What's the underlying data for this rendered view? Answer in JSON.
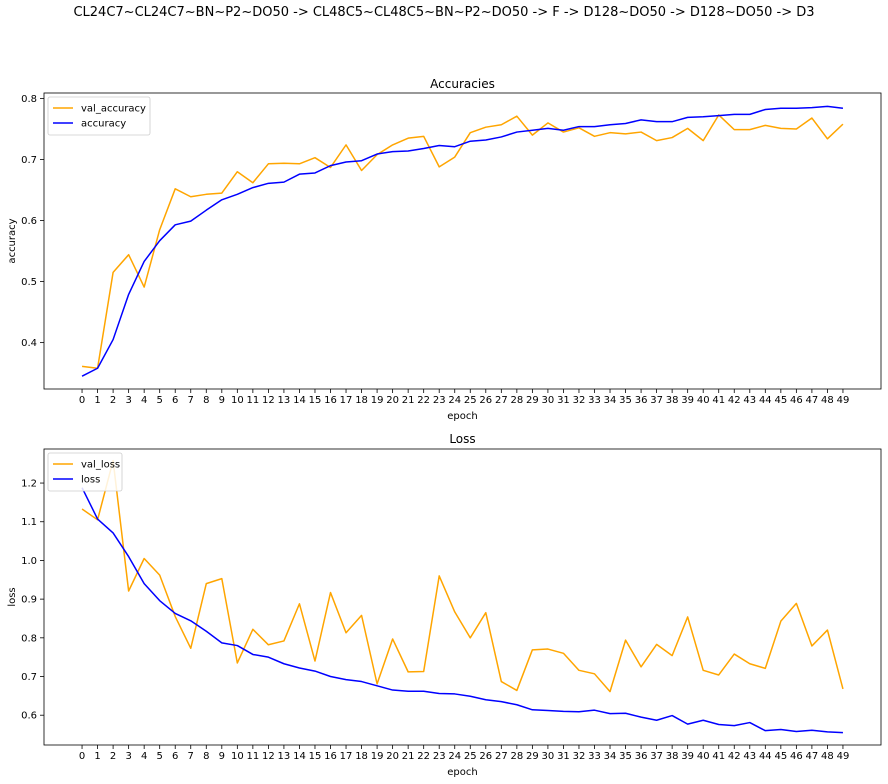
{
  "suptitle": "CL24C7~CL24C7~BN~P2~DO50 -> CL48C5~CL48C5~BN~P2~DO50 -> F -> D128~DO50 -> D128~DO50 -> D3",
  "colors": {
    "orange": "#ffa500",
    "blue": "#0000ff"
  },
  "chart_data": [
    {
      "type": "line",
      "title": "Accuracies",
      "xlabel": "epoch",
      "ylabel": "accuracy",
      "x": [
        0,
        1,
        2,
        3,
        4,
        5,
        6,
        7,
        8,
        9,
        10,
        11,
        12,
        13,
        14,
        15,
        16,
        17,
        18,
        19,
        20,
        21,
        22,
        23,
        24,
        25,
        26,
        27,
        28,
        29,
        30,
        31,
        32,
        33,
        34,
        35,
        36,
        37,
        38,
        39,
        40,
        41,
        42,
        43,
        44,
        45,
        46,
        47,
        48,
        49
      ],
      "xlim": [
        -2.45,
        51.45
      ],
      "ylim": [
        0.324,
        0.809
      ],
      "yticks": [
        0.4,
        0.5,
        0.6,
        0.7,
        0.8
      ],
      "yticklabels": [
        "0.4",
        "0.5",
        "0.6",
        "0.7",
        "0.8"
      ],
      "legend_loc": "upper left",
      "grid": false,
      "series": [
        {
          "name": "val_accuracy",
          "color": "#ffa500",
          "values": [
            0.361,
            0.358,
            0.515,
            0.544,
            0.491,
            0.585,
            0.652,
            0.639,
            0.643,
            0.645,
            0.68,
            0.662,
            0.693,
            0.694,
            0.693,
            0.703,
            0.687,
            0.724,
            0.682,
            0.708,
            0.724,
            0.735,
            0.738,
            0.688,
            0.704,
            0.744,
            0.753,
            0.757,
            0.771,
            0.74,
            0.76,
            0.745,
            0.752,
            0.738,
            0.744,
            0.742,
            0.745,
            0.731,
            0.736,
            0.751,
            0.731,
            0.773,
            0.749,
            0.749,
            0.756,
            0.751,
            0.75,
            0.768,
            0.734,
            0.758
          ]
        },
        {
          "name": "accuracy",
          "color": "#0000ff",
          "values": [
            0.345,
            0.358,
            0.405,
            0.479,
            0.533,
            0.567,
            0.593,
            0.599,
            0.617,
            0.634,
            0.643,
            0.654,
            0.661,
            0.663,
            0.676,
            0.678,
            0.69,
            0.696,
            0.698,
            0.709,
            0.713,
            0.714,
            0.718,
            0.723,
            0.721,
            0.73,
            0.732,
            0.737,
            0.745,
            0.748,
            0.751,
            0.748,
            0.754,
            0.754,
            0.757,
            0.759,
            0.765,
            0.762,
            0.762,
            0.769,
            0.77,
            0.772,
            0.774,
            0.774,
            0.782,
            0.784,
            0.784,
            0.785,
            0.787,
            0.784
          ]
        }
      ]
    },
    {
      "type": "line",
      "title": "Loss",
      "xlabel": "epoch",
      "ylabel": "loss",
      "x": [
        0,
        1,
        2,
        3,
        4,
        5,
        6,
        7,
        8,
        9,
        10,
        11,
        12,
        13,
        14,
        15,
        16,
        17,
        18,
        19,
        20,
        21,
        22,
        23,
        24,
        25,
        26,
        27,
        28,
        29,
        30,
        31,
        32,
        33,
        34,
        35,
        36,
        37,
        38,
        39,
        40,
        41,
        42,
        43,
        44,
        45,
        46,
        47,
        48,
        49
      ],
      "xlim": [
        -2.45,
        51.45
      ],
      "ylim": [
        0.523,
        1.288
      ],
      "yticks": [
        0.6,
        0.7,
        0.8,
        0.9,
        1.0,
        1.1,
        1.2
      ],
      "yticklabels": [
        "0.6",
        "0.7",
        "0.8",
        "0.9",
        "1.0",
        "1.1",
        "1.2"
      ],
      "legend_loc": "upper left",
      "grid": false,
      "series": [
        {
          "name": "val_loss",
          "color": "#ffa500",
          "values": [
            1.133,
            1.105,
            1.258,
            0.921,
            1.005,
            0.962,
            0.855,
            0.773,
            0.94,
            0.953,
            0.735,
            0.822,
            0.782,
            0.792,
            0.888,
            0.74,
            0.917,
            0.813,
            0.858,
            0.681,
            0.797,
            0.712,
            0.713,
            0.96,
            0.867,
            0.8,
            0.865,
            0.687,
            0.664,
            0.769,
            0.771,
            0.76,
            0.716,
            0.707,
            0.661,
            0.794,
            0.725,
            0.783,
            0.754,
            0.854,
            0.716,
            0.704,
            0.758,
            0.733,
            0.721,
            0.843,
            0.889,
            0.779,
            0.82,
            0.668
          ]
        },
        {
          "name": "loss",
          "color": "#0000ff",
          "values": [
            1.188,
            1.107,
            1.071,
            1.01,
            0.94,
            0.896,
            0.863,
            0.844,
            0.817,
            0.787,
            0.78,
            0.757,
            0.75,
            0.733,
            0.722,
            0.714,
            0.7,
            0.692,
            0.687,
            0.676,
            0.665,
            0.662,
            0.662,
            0.656,
            0.655,
            0.649,
            0.64,
            0.635,
            0.627,
            0.614,
            0.612,
            0.61,
            0.609,
            0.613,
            0.604,
            0.605,
            0.595,
            0.587,
            0.599,
            0.577,
            0.587,
            0.576,
            0.573,
            0.581,
            0.56,
            0.563,
            0.558,
            0.561,
            0.557,
            0.555
          ]
        }
      ]
    }
  ]
}
